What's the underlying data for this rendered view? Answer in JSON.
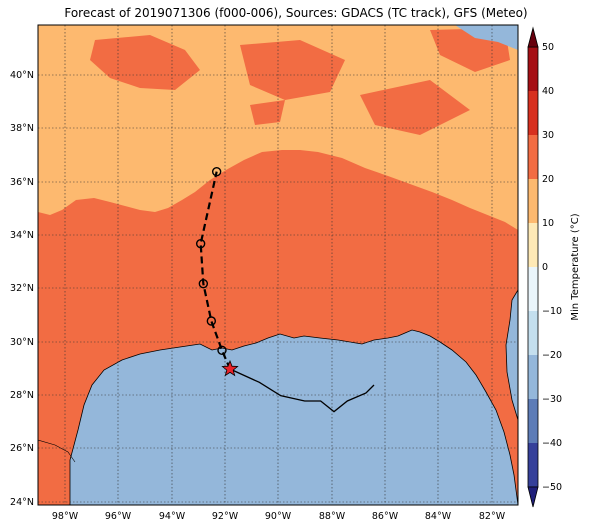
{
  "title": "Forecast of 2019071306 (f000-006), Sources: GDACS (TC track), GFS (Meteo)",
  "map": {
    "lon_range": [
      -99,
      -81
    ],
    "lat_range": [
      24,
      42
    ],
    "lon_ticks": [
      "98°W",
      "96°W",
      "94°W",
      "92°W",
      "90°W",
      "88°W",
      "86°W",
      "84°W",
      "82°W"
    ],
    "lat_ticks": [
      "24°N",
      "26°N",
      "28°N",
      "30°N",
      "32°N",
      "34°N",
      "36°N",
      "38°N",
      "40°N"
    ],
    "grid": "dotted",
    "colors": {
      "sea": "#94b7da",
      "land_warm": "#f26c43",
      "land_mild": "#fdb96f",
      "coast": "#000000",
      "track": "#000000",
      "current_position_marker": "#e8232a"
    }
  },
  "track": {
    "forecast_points": [
      {
        "lon": -92.3,
        "lat": 36.5
      },
      {
        "lon": -92.9,
        "lat": 33.8
      },
      {
        "lon": -92.8,
        "lat": 32.3
      },
      {
        "lon": -92.5,
        "lat": 30.9
      },
      {
        "lon": -92.1,
        "lat": 29.8
      }
    ],
    "current_position": {
      "lon": -91.8,
      "lat": 29.1
    },
    "past_track": [
      {
        "lon": -91.8,
        "lat": 29.1
      },
      {
        "lon": -90.7,
        "lat": 28.6
      },
      {
        "lon": -89.9,
        "lat": 28.1
      },
      {
        "lon": -89.0,
        "lat": 27.9
      },
      {
        "lon": -88.4,
        "lat": 27.9
      },
      {
        "lon": -87.9,
        "lat": 27.5
      },
      {
        "lon": -87.4,
        "lat": 27.9
      },
      {
        "lon": -86.7,
        "lat": 28.2
      },
      {
        "lon": -86.4,
        "lat": 28.5
      }
    ]
  },
  "colorbar": {
    "label": "Min Temperature (°C)",
    "ticks": [
      "50",
      "40",
      "30",
      "20",
      "10",
      "0",
      "−10",
      "−20",
      "−30",
      "−40",
      "−50"
    ],
    "bands": [
      "#67000d",
      "#a50f15",
      "#d7301f",
      "#f26c43",
      "#fdb96f",
      "#fee9b6",
      "#eaf5fb",
      "#c4dfee",
      "#94b7da",
      "#5d7cb7",
      "#35409a",
      "#1f1f7a"
    ]
  }
}
